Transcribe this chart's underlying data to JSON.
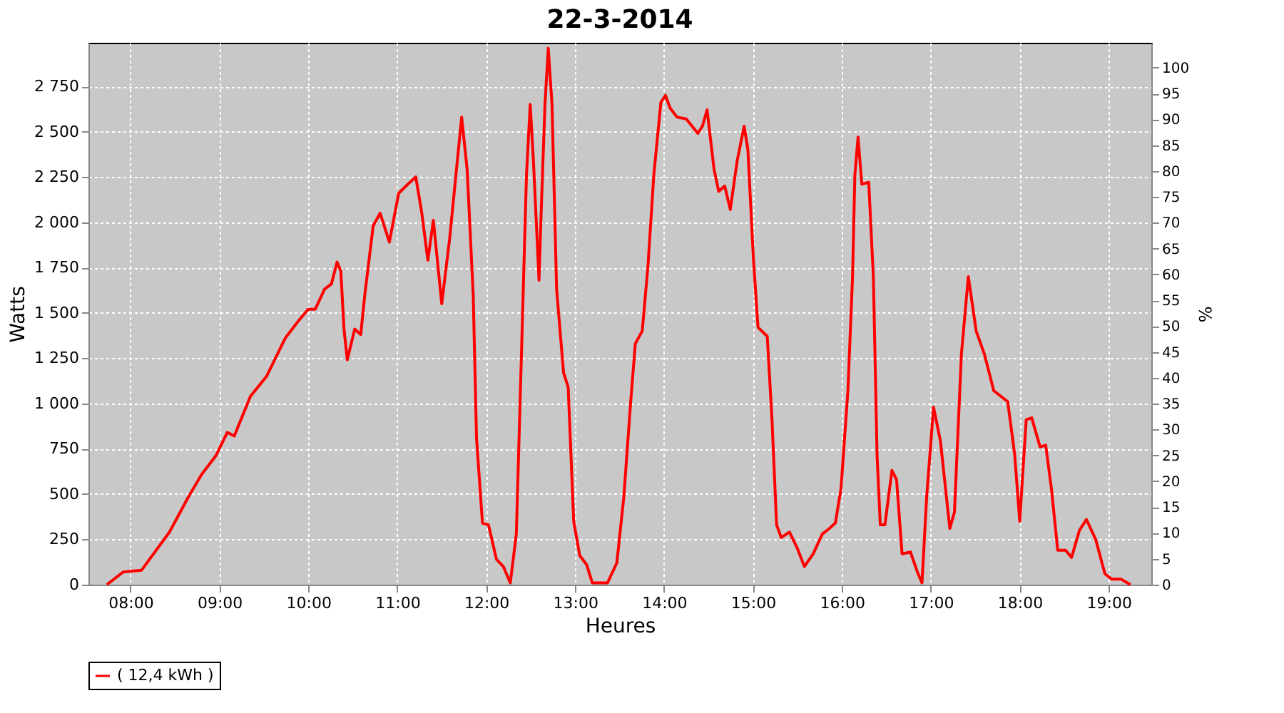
{
  "chart_data": {
    "type": "line",
    "title": "22-3-2014",
    "xlabel": "Heures",
    "ylabel": "Watts",
    "y2label": "%",
    "xlim": [
      7.527,
      19.48
    ],
    "xticks": [
      {
        "value": 8,
        "label": "08:00"
      },
      {
        "value": 9,
        "label": "09:00"
      },
      {
        "value": 10,
        "label": "10:00"
      },
      {
        "value": 11,
        "label": "11:00"
      },
      {
        "value": 12,
        "label": "12:00"
      },
      {
        "value": 13,
        "label": "13:00"
      },
      {
        "value": 14,
        "label": "14:00"
      },
      {
        "value": 15,
        "label": "15:00"
      },
      {
        "value": 16,
        "label": "16:00"
      },
      {
        "value": 17,
        "label": "17:00"
      },
      {
        "value": 18,
        "label": "18:00"
      },
      {
        "value": 19,
        "label": "19:00"
      }
    ],
    "ylim": [
      0,
      2990
    ],
    "yticks": [
      0,
      250,
      500,
      750,
      {
        "value": 1000,
        "label": "1 000"
      },
      {
        "value": 1250,
        "label": "1 250"
      },
      {
        "value": 1500,
        "label": "1 500"
      },
      {
        "value": 1750,
        "label": "1 750"
      },
      {
        "value": 2000,
        "label": "2 000"
      },
      {
        "value": 2250,
        "label": "2 250"
      },
      {
        "value": 2500,
        "label": "2 500"
      },
      {
        "value": 2750,
        "label": "2 750"
      }
    ],
    "y2lim": [
      0,
      104.8
    ],
    "y2ticks": [
      0,
      5,
      10,
      15,
      20,
      25,
      30,
      35,
      40,
      45,
      50,
      55,
      60,
      65,
      70,
      75,
      80,
      85,
      90,
      95,
      100
    ],
    "grid": true,
    "legend": "bottom",
    "marker": "none",
    "line_style": "solid",
    "series": [
      {
        "name": "( 12,4 kWh )",
        "color": "#ff0000",
        "x": [
          7.734,
          7.917,
          8.125,
          8.333,
          8.438,
          8.646,
          8.802,
          8.958,
          9.089,
          9.167,
          9.349,
          9.531,
          9.74,
          9.896,
          10.0,
          10.078,
          10.182,
          10.26,
          10.323,
          10.365,
          10.401,
          10.438,
          10.521,
          10.589,
          10.635,
          10.729,
          10.807,
          10.911,
          11.016,
          11.12,
          11.208,
          11.276,
          11.344,
          11.406,
          11.5,
          11.589,
          11.724,
          11.786,
          11.854,
          11.891,
          11.958,
          12.026,
          12.115,
          12.193,
          12.271,
          12.339,
          12.401,
          12.453,
          12.495,
          12.531,
          12.594,
          12.62,
          12.661,
          12.698,
          12.74,
          12.792,
          12.87,
          12.922,
          12.984,
          13.052,
          13.13,
          13.193,
          13.365,
          13.469,
          13.547,
          13.625,
          13.677,
          13.755,
          13.818,
          13.885,
          13.964,
          14.016,
          14.068,
          14.146,
          14.25,
          14.38,
          14.432,
          14.484,
          14.563,
          14.615,
          14.682,
          14.745,
          14.823,
          14.901,
          14.943,
          15.005,
          15.057,
          15.161,
          15.214,
          15.266,
          15.318,
          15.411,
          15.5,
          15.578,
          15.677,
          15.781,
          15.859,
          15.927,
          15.99,
          16.068,
          16.12,
          16.146,
          16.182,
          16.224,
          16.302,
          16.354,
          16.396,
          16.432,
          16.484,
          16.563,
          16.615,
          16.677,
          16.771,
          16.849,
          16.901,
          16.953,
          17.031,
          17.109,
          17.214,
          17.266,
          17.344,
          17.422,
          17.51,
          17.604,
          17.708,
          17.865,
          17.943,
          18.0,
          18.073,
          18.135,
          18.229,
          18.292,
          18.359,
          18.427,
          18.516,
          18.583,
          18.672,
          18.75,
          18.854,
          18.958,
          19.036,
          19.141,
          19.245
        ],
        "values": [
          0,
          70,
          80,
          220,
          290,
          480,
          610,
          710,
          840,
          820,
          1040,
          1150,
          1360,
          1460,
          1520,
          1520,
          1630,
          1660,
          1780,
          1730,
          1410,
          1240,
          1410,
          1380,
          1600,
          1980,
          2050,
          1890,
          2160,
          2210,
          2250,
          2050,
          1790,
          2010,
          1550,
          1910,
          2580,
          2290,
          1600,
          810,
          340,
          330,
          140,
          100,
          10,
          280,
          1350,
          2260,
          2650,
          2340,
          1680,
          2080,
          2650,
          2960,
          2650,
          1630,
          1170,
          1090,
          350,
          160,
          110,
          10,
          10,
          120,
          480,
          1010,
          1330,
          1400,
          1750,
          2260,
          2660,
          2700,
          2630,
          2580,
          2570,
          2490,
          2530,
          2620,
          2290,
          2170,
          2200,
          2070,
          2340,
          2530,
          2400,
          1800,
          1420,
          1370,
          910,
          330,
          260,
          290,
          200,
          100,
          170,
          280,
          310,
          340,
          530,
          1070,
          1700,
          2260,
          2470,
          2210,
          2220,
          1700,
          710,
          330,
          330,
          630,
          580,
          170,
          180,
          70,
          10,
          480,
          980,
          790,
          310,
          400,
          1270,
          1700,
          1400,
          1270,
          1070,
          1010,
          720,
          350,
          910,
          920,
          760,
          770,
          520,
          190,
          190,
          150,
          300,
          360,
          250,
          60,
          30,
          30,
          0
        ]
      }
    ]
  }
}
